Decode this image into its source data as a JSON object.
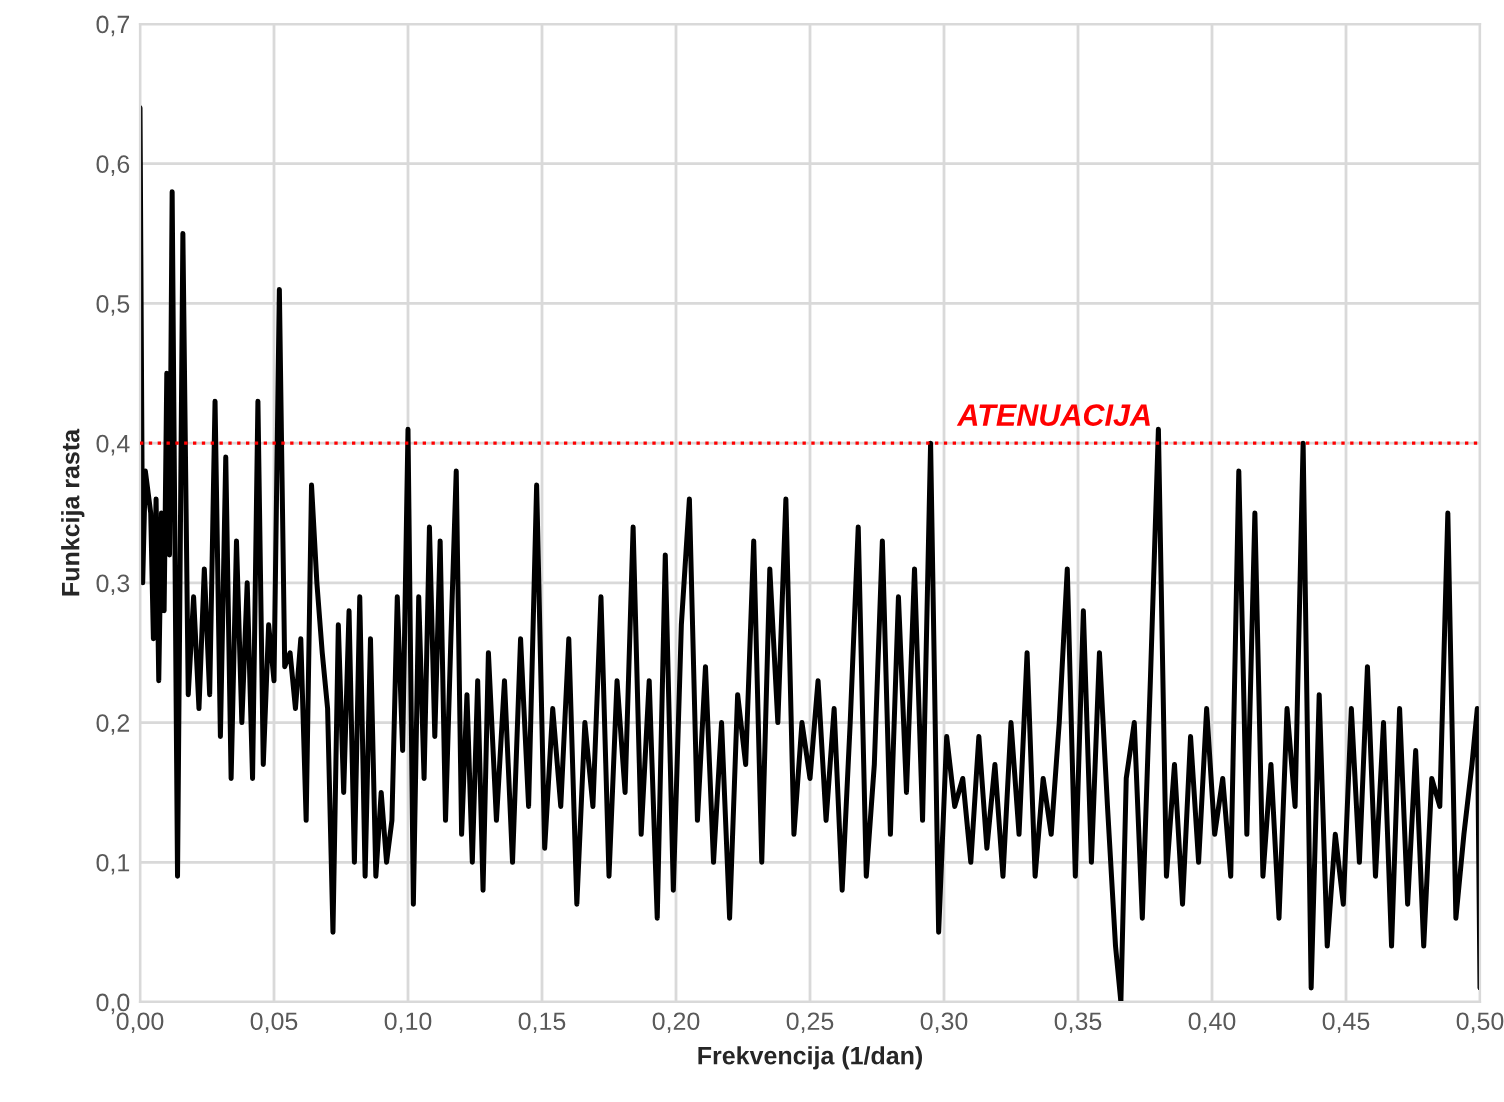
{
  "chart_data": {
    "type": "line",
    "xlabel": "Frekvencija (1/dan)",
    "ylabel": "Funkcija rasta",
    "x": [
      0.0,
      0.001,
      0.002,
      0.004,
      0.005,
      0.006,
      0.007,
      0.008,
      0.009,
      0.01,
      0.011,
      0.012,
      0.014,
      0.016,
      0.018,
      0.02,
      0.022,
      0.024,
      0.026,
      0.028,
      0.03,
      0.032,
      0.034,
      0.036,
      0.038,
      0.04,
      0.042,
      0.044,
      0.046,
      0.048,
      0.05,
      0.052,
      0.054,
      0.056,
      0.058,
      0.06,
      0.062,
      0.064,
      0.066,
      0.068,
      0.07,
      0.072,
      0.074,
      0.076,
      0.078,
      0.08,
      0.082,
      0.084,
      0.086,
      0.088,
      0.09,
      0.092,
      0.094,
      0.096,
      0.098,
      0.1,
      0.102,
      0.104,
      0.106,
      0.108,
      0.11,
      0.112,
      0.114,
      0.116,
      0.118,
      0.12,
      0.122,
      0.124,
      0.126,
      0.128,
      0.13,
      0.133,
      0.136,
      0.139,
      0.142,
      0.145,
      0.148,
      0.151,
      0.154,
      0.157,
      0.16,
      0.163,
      0.166,
      0.169,
      0.172,
      0.175,
      0.178,
      0.181,
      0.184,
      0.187,
      0.19,
      0.193,
      0.196,
      0.199,
      0.202,
      0.205,
      0.208,
      0.211,
      0.214,
      0.217,
      0.22,
      0.223,
      0.226,
      0.229,
      0.232,
      0.235,
      0.238,
      0.241,
      0.244,
      0.247,
      0.25,
      0.253,
      0.256,
      0.259,
      0.262,
      0.265,
      0.268,
      0.271,
      0.274,
      0.277,
      0.28,
      0.283,
      0.286,
      0.289,
      0.292,
      0.295,
      0.298,
      0.301,
      0.304,
      0.307,
      0.31,
      0.313,
      0.316,
      0.319,
      0.322,
      0.325,
      0.328,
      0.331,
      0.334,
      0.337,
      0.34,
      0.343,
      0.346,
      0.349,
      0.352,
      0.355,
      0.358,
      0.361,
      0.364,
      0.366,
      0.368,
      0.371,
      0.374,
      0.377,
      0.38,
      0.383,
      0.386,
      0.389,
      0.392,
      0.395,
      0.398,
      0.401,
      0.404,
      0.407,
      0.41,
      0.413,
      0.416,
      0.419,
      0.422,
      0.425,
      0.428,
      0.431,
      0.434,
      0.437,
      0.44,
      0.443,
      0.446,
      0.449,
      0.452,
      0.455,
      0.458,
      0.461,
      0.464,
      0.467,
      0.47,
      0.473,
      0.476,
      0.479,
      0.482,
      0.485,
      0.488,
      0.491,
      0.494,
      0.497,
      0.499,
      0.5
    ],
    "series": [
      {
        "color": "#000000",
        "values": [
          0.64,
          0.3,
          0.38,
          0.35,
          0.26,
          0.36,
          0.23,
          0.35,
          0.28,
          0.45,
          0.32,
          0.58,
          0.09,
          0.55,
          0.22,
          0.29,
          0.21,
          0.31,
          0.22,
          0.43,
          0.19,
          0.39,
          0.16,
          0.33,
          0.2,
          0.3,
          0.16,
          0.43,
          0.17,
          0.27,
          0.23,
          0.51,
          0.24,
          0.25,
          0.21,
          0.26,
          0.13,
          0.37,
          0.3,
          0.25,
          0.21,
          0.05,
          0.27,
          0.15,
          0.28,
          0.1,
          0.29,
          0.09,
          0.26,
          0.09,
          0.15,
          0.1,
          0.13,
          0.29,
          0.18,
          0.41,
          0.07,
          0.29,
          0.16,
          0.34,
          0.19,
          0.33,
          0.13,
          0.26,
          0.38,
          0.12,
          0.22,
          0.1,
          0.23,
          0.08,
          0.25,
          0.13,
          0.23,
          0.1,
          0.26,
          0.14,
          0.37,
          0.11,
          0.21,
          0.14,
          0.26,
          0.07,
          0.2,
          0.14,
          0.29,
          0.09,
          0.23,
          0.15,
          0.34,
          0.12,
          0.23,
          0.06,
          0.32,
          0.08,
          0.27,
          0.36,
          0.13,
          0.24,
          0.1,
          0.2,
          0.06,
          0.22,
          0.17,
          0.33,
          0.1,
          0.31,
          0.2,
          0.36,
          0.12,
          0.2,
          0.16,
          0.23,
          0.13,
          0.21,
          0.08,
          0.2,
          0.34,
          0.09,
          0.17,
          0.33,
          0.12,
          0.29,
          0.15,
          0.31,
          0.13,
          0.4,
          0.05,
          0.19,
          0.14,
          0.16,
          0.1,
          0.19,
          0.11,
          0.17,
          0.09,
          0.2,
          0.12,
          0.25,
          0.09,
          0.16,
          0.12,
          0.2,
          0.31,
          0.09,
          0.28,
          0.1,
          0.25,
          0.14,
          0.04,
          0.0,
          0.16,
          0.2,
          0.06,
          0.23,
          0.41,
          0.09,
          0.17,
          0.07,
          0.19,
          0.1,
          0.21,
          0.12,
          0.16,
          0.09,
          0.38,
          0.12,
          0.35,
          0.09,
          0.17,
          0.06,
          0.21,
          0.14,
          0.4,
          0.01,
          0.22,
          0.04,
          0.12,
          0.07,
          0.21,
          0.1,
          0.24,
          0.09,
          0.2,
          0.04,
          0.21,
          0.07,
          0.18,
          0.04,
          0.16,
          0.14,
          0.35,
          0.06,
          0.12,
          0.17,
          0.21,
          0.01
        ]
      }
    ],
    "xlim": [
      0,
      0.5
    ],
    "ylim": [
      0,
      0.7
    ],
    "xticks": [
      {
        "value": 0,
        "label": "0,00"
      },
      {
        "value": 0.05,
        "label": "0,05"
      },
      {
        "value": 0.1,
        "label": "0,10"
      },
      {
        "value": 0.15,
        "label": "0,15"
      },
      {
        "value": 0.2,
        "label": "0,20"
      },
      {
        "value": 0.25,
        "label": "0,25"
      },
      {
        "value": 0.3,
        "label": "0,30"
      },
      {
        "value": 0.35,
        "label": "0,35"
      },
      {
        "value": 0.4,
        "label": "0,40"
      },
      {
        "value": 0.45,
        "label": "0,45"
      },
      {
        "value": 0.5,
        "label": "0,50"
      }
    ],
    "yticks": [
      {
        "value": 0,
        "label": "0,0"
      },
      {
        "value": 0.1,
        "label": "0,1"
      },
      {
        "value": 0.2,
        "label": "0,2"
      },
      {
        "value": 0.3,
        "label": "0,3"
      },
      {
        "value": 0.4,
        "label": "0,4"
      },
      {
        "value": 0.5,
        "label": "0,5"
      },
      {
        "value": 0.6,
        "label": "0,6"
      },
      {
        "value": 0.7,
        "label": "0,7"
      }
    ],
    "ref_lines": [
      {
        "axis": "y",
        "value": 0.4,
        "label": "ATENUACIJA",
        "color": "#ff0000",
        "line_style": "dotted"
      }
    ],
    "grid": true,
    "legend": false,
    "marker": "none",
    "line_style": "solid"
  }
}
